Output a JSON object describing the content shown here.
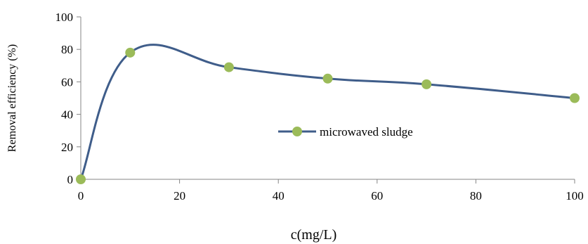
{
  "chart_data": {
    "type": "line",
    "x": [
      0,
      10,
      30,
      50,
      70,
      100
    ],
    "series": [
      {
        "name": "microwaved sludge",
        "values": [
          0,
          78,
          69,
          62,
          58.5,
          50
        ]
      }
    ],
    "xlabel": "c(mg/L)",
    "ylabel": "Removal efficiency (%)",
    "xlim": [
      0,
      100
    ],
    "ylim": [
      0,
      100
    ],
    "xticks": [
      "0",
      "20",
      "40",
      "60",
      "80",
      "100"
    ],
    "yticks": [
      "0",
      "20",
      "40",
      "60",
      "80",
      "100"
    ],
    "smooth": true,
    "grid": false,
    "legend_position": "center-right",
    "colors": {
      "line": "#3F5D8A",
      "marker": "#9BBB59",
      "axis": "#868686"
    }
  }
}
